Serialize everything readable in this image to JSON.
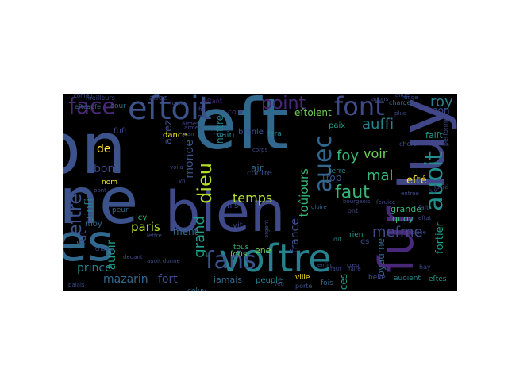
{
  "cloud": {
    "words": [
      {
        "text": "son",
        "color": "#3b528b"
      },
      {
        "text": "eſt",
        "color": "#31688e"
      },
      {
        "text": "vne",
        "color": "#3b528b"
      },
      {
        "text": "bien",
        "color": "#3e4a89"
      },
      {
        "text": "luy",
        "color": "#404688"
      },
      {
        "text": "ſes",
        "color": "#31688e"
      },
      {
        "text": "voſtre",
        "color": "#26828e"
      },
      {
        "text": "ſur",
        "color": "#482878"
      },
      {
        "text": "eſtoit",
        "color": "#3b528b"
      },
      {
        "text": "face",
        "color": "#482878"
      },
      {
        "text": "font",
        "color": "#3e4a89"
      },
      {
        "text": "ſans",
        "color": "#3b528b"
      },
      {
        "text": "auoit",
        "color": "#21918c"
      },
      {
        "text": "auec",
        "color": "#31688e"
      },
      {
        "text": "point",
        "color": "#482878"
      },
      {
        "text": "dieu",
        "color": "#b5de2b"
      },
      {
        "text": "eſtre",
        "color": "#3b528b"
      },
      {
        "text": "faut",
        "color": "#35b779"
      },
      {
        "text": "auſſi",
        "color": "#26828e"
      },
      {
        "text": "roy",
        "color": "#26828e"
      },
      {
        "text": "mal",
        "color": "#35b779"
      },
      {
        "text": "voir",
        "color": "#6ece58"
      },
      {
        "text": "foy",
        "color": "#35b779"
      },
      {
        "text": "meſme",
        "color": "#3e4a89"
      },
      {
        "text": "temps",
        "color": "#b5de2b"
      },
      {
        "text": "paris",
        "color": "#b5de2b"
      },
      {
        "text": "grand",
        "color": "#1f9e89"
      },
      {
        "text": "prince",
        "color": "#26828e"
      },
      {
        "text": "mazarin",
        "color": "#31688e"
      },
      {
        "text": "fort",
        "color": "#3b528b"
      },
      {
        "text": "monde",
        "color": "#3b528b"
      },
      {
        "text": "auoir",
        "color": "#1f9e89"
      },
      {
        "text": "ainſi",
        "color": "#26828e"
      },
      {
        "text": "fut",
        "color": "#3e4a89"
      },
      {
        "text": "bon",
        "color": "#3e4a89"
      },
      {
        "text": "toûjours",
        "color": "#35b779"
      },
      {
        "text": "france",
        "color": "#3b528b"
      },
      {
        "text": "fortier",
        "color": "#1f9e89"
      },
      {
        "text": "ment",
        "color": "#31688e"
      },
      {
        "text": "grande",
        "color": "#35b779"
      },
      {
        "text": "eſté",
        "color": "#fde725"
      },
      {
        "text": "de",
        "color": "#fde725"
      },
      {
        "text": "auez",
        "color": "#3e4a89"
      },
      {
        "text": "noſtre",
        "color": "#26828e"
      },
      {
        "text": "royaume",
        "color": "#31688e"
      },
      {
        "text": "ſous",
        "color": "#6ece58"
      },
      {
        "text": "ene",
        "color": "#6ece58"
      },
      {
        "text": "air",
        "color": "#31688e"
      },
      {
        "text": "faiſt",
        "color": "#1f9e89"
      },
      {
        "text": "iamais",
        "color": "#31688e"
      },
      {
        "text": "peuple",
        "color": "#26828e"
      },
      {
        "text": "eſtoient",
        "color": "#6ece58"
      },
      {
        "text": "non",
        "color": "#3e4a89"
      },
      {
        "text": "paix",
        "color": "#1f9e89"
      },
      {
        "text": "cour",
        "color": "#482878"
      },
      {
        "text": "trop",
        "color": "#3b528b"
      },
      {
        "text": "quoy",
        "color": "#35b779"
      },
      {
        "text": "princes",
        "color": "#1f9e89"
      },
      {
        "text": "celuy",
        "color": "#31688e"
      },
      {
        "text": "main",
        "color": "#26828e"
      },
      {
        "text": "contre",
        "color": "#3b528b"
      },
      {
        "text": "dance",
        "color": "#fde725"
      },
      {
        "text": "icy",
        "color": "#35b779"
      },
      {
        "text": "moy",
        "color": "#31688e"
      },
      {
        "text": "peur",
        "color": "#31688e"
      },
      {
        "text": "fuſt",
        "color": "#3e4a89"
      },
      {
        "text": "ville",
        "color": "#fde725"
      },
      {
        "text": "fils",
        "color": "#3b528b"
      },
      {
        "text": "vit",
        "color": "#3e4a89"
      },
      {
        "text": "nom",
        "color": "#fde725"
      },
      {
        "text": "terre",
        "color": "#26828e"
      },
      {
        "text": "rien",
        "color": "#1f9e89"
      },
      {
        "text": "es",
        "color": "#3e4a89"
      },
      {
        "text": "fois",
        "color": "#31688e"
      },
      {
        "text": "belle",
        "color": "#3e4a89"
      },
      {
        "text": "auoient",
        "color": "#26828e"
      },
      {
        "text": "eſtes",
        "color": "#1f9e89"
      },
      {
        "text": "porte",
        "color": "#3b528b"
      },
      {
        "text": "ciel",
        "color": "#3e4a89"
      },
      {
        "text": "charge",
        "color": "#31688e"
      },
      {
        "text": "perſonne",
        "color": "#3e4a89"
      },
      {
        "text": "fera",
        "color": "#26828e"
      },
      {
        "text": "branle",
        "color": "#3b528b"
      },
      {
        "text": "eſtant",
        "color": "#482878"
      },
      {
        "text": "aſſez",
        "color": "#3e4a89"
      },
      {
        "text": "meilleurs",
        "color": "#3e4a89"
      },
      {
        "text": "conſeil",
        "color": "#3e4a89"
      },
      {
        "text": "eſtcauſe",
        "color": "#31688e"
      },
      {
        "text": "cour",
        "color": "#31688e"
      },
      {
        "text": "dit",
        "color": "#26828e"
      },
      {
        "text": "choſe",
        "color": "#3e4a89"
      },
      {
        "text": "plus",
        "color": "#3e4a89"
      },
      {
        "text": "ange",
        "color": "#3e4a89"
      },
      {
        "text": "auons",
        "color": "#3e4a89"
      },
      {
        "text": "gloire",
        "color": "#31688e"
      },
      {
        "text": "ont",
        "color": "#3e4a89"
      },
      {
        "text": "tous",
        "color": "#35b779"
      },
      {
        "text": "bourgeois",
        "color": "#3e4a89"
      },
      {
        "text": "ſeruice",
        "color": "#3e4a89"
      },
      {
        "text": "palais",
        "color": "#3e4a89"
      },
      {
        "text": "auoit donne",
        "color": "#3e4a89"
      },
      {
        "text": "deuant",
        "color": "#3e4a89"
      },
      {
        "text": "choſes",
        "color": "#3e4a89"
      },
      {
        "text": "lettre",
        "color": "#3e4a89"
      },
      {
        "text": "corps",
        "color": "#3e4a89"
      },
      {
        "text": "argent",
        "color": "#3e4a89"
      },
      {
        "text": "veu",
        "color": "#3e4a89"
      },
      {
        "text": "faut",
        "color": "#3e4a89"
      },
      {
        "text": "luy",
        "color": "#3e4a89"
      },
      {
        "text": "eſtat",
        "color": "#3e4a89"
      },
      {
        "text": "fait",
        "color": "#3e4a89"
      },
      {
        "text": "hay",
        "color": "#3e4a89"
      },
      {
        "text": "place",
        "color": "#3e4a89"
      },
      {
        "text": "cœur",
        "color": "#3e4a89"
      },
      {
        "text": "faire",
        "color": "#3e4a89"
      },
      {
        "text": "enfin",
        "color": "#3e4a89"
      },
      {
        "text": "armes",
        "color": "#3e4a89"
      },
      {
        "text": "iour",
        "color": "#3e4a89"
      },
      {
        "text": "fin",
        "color": "#3e4a89"
      },
      {
        "text": "mis",
        "color": "#3e4a89"
      },
      {
        "text": "can",
        "color": "#3e4a89"
      },
      {
        "text": "force",
        "color": "#3e4a89"
      },
      {
        "text": "ange",
        "color": "#3e4a89"
      },
      {
        "text": "pont",
        "color": "#3e4a89"
      },
      {
        "text": "ſacré",
        "color": "#3e4a89"
      },
      {
        "text": "voila",
        "color": "#3e4a89"
      },
      {
        "text": "vn",
        "color": "#3e4a89"
      },
      {
        "text": "entrée",
        "color": "#3e4a89"
      },
      {
        "text": "armes",
        "color": "#3e4a89"
      }
    ]
  }
}
